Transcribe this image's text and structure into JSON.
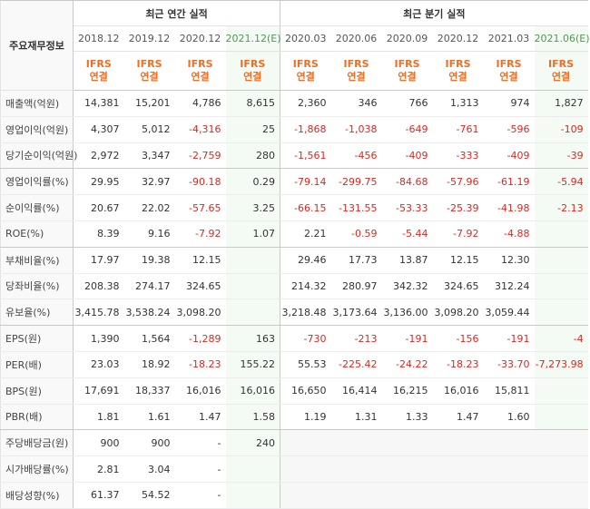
{
  "header": {
    "row_title": "주요재무정보",
    "annual_title": "최근 연간 실적",
    "quarterly_title": "최근 분기 실적",
    "periods": [
      "2018.12",
      "2019.12",
      "2020.12",
      "2021.12(E)",
      "2020.03",
      "2020.06",
      "2020.09",
      "2020.12",
      "2021.03",
      "2021.06(E)"
    ],
    "ifrs_line1": "IFRS",
    "ifrs_line2": "연결"
  },
  "rows": [
    {
      "label": "매출액(억원)",
      "values": [
        "14,381",
        "15,201",
        "4,786",
        "8,615",
        "2,360",
        "346",
        "766",
        "1,313",
        "974",
        "1,827"
      ]
    },
    {
      "label": "영업이익(억원)",
      "values": [
        "4,307",
        "5,012",
        "-4,316",
        "25",
        "-1,868",
        "-1,038",
        "-649",
        "-761",
        "-596",
        "-109"
      ]
    },
    {
      "label": "당기순이익(억원)",
      "values": [
        "2,972",
        "3,347",
        "-2,759",
        "280",
        "-1,561",
        "-456",
        "-409",
        "-333",
        "-409",
        "-39"
      ]
    },
    {
      "label": "영업이익률(%)",
      "values": [
        "29.95",
        "32.97",
        "-90.18",
        "0.29",
        "-79.14",
        "-299.75",
        "-84.68",
        "-57.96",
        "-61.19",
        "-5.94"
      ]
    },
    {
      "label": "순이익률(%)",
      "values": [
        "20.67",
        "22.02",
        "-57.65",
        "3.25",
        "-66.15",
        "-131.55",
        "-53.33",
        "-25.39",
        "-41.98",
        "-2.13"
      ]
    },
    {
      "label": "ROE(%)",
      "values": [
        "8.39",
        "9.16",
        "-7.92",
        "1.07",
        "2.21",
        "-0.59",
        "-5.44",
        "-7.92",
        "-4.88",
        ""
      ]
    },
    {
      "label": "부채비율(%)",
      "values": [
        "17.97",
        "19.38",
        "12.15",
        "",
        "29.46",
        "17.73",
        "13.87",
        "12.15",
        "12.30",
        ""
      ]
    },
    {
      "label": "당좌비율(%)",
      "values": [
        "208.38",
        "274.17",
        "324.65",
        "",
        "214.32",
        "280.97",
        "342.32",
        "324.65",
        "312.24",
        ""
      ]
    },
    {
      "label": "유보율(%)",
      "values": [
        "3,415.78",
        "3,538.24",
        "3,098.20",
        "",
        "3,218.48",
        "3,173.64",
        "3,136.00",
        "3,098.20",
        "3,059.44",
        ""
      ]
    },
    {
      "label": "EPS(원)",
      "values": [
        "1,390",
        "1,564",
        "-1,289",
        "163",
        "-730",
        "-213",
        "-191",
        "-156",
        "-191",
        "-4"
      ]
    },
    {
      "label": "PER(배)",
      "values": [
        "23.03",
        "18.92",
        "-18.23",
        "155.22",
        "55.53",
        "-225.42",
        "-24.22",
        "-18.23",
        "-33.70",
        "-7,273.98"
      ]
    },
    {
      "label": "BPS(원)",
      "values": [
        "17,691",
        "18,337",
        "16,016",
        "16,016",
        "16,650",
        "16,414",
        "16,215",
        "16,016",
        "15,811",
        ""
      ]
    },
    {
      "label": "PBR(배)",
      "values": [
        "1.81",
        "1.61",
        "1.47",
        "1.58",
        "1.19",
        "1.31",
        "1.33",
        "1.47",
        "1.60",
        ""
      ]
    },
    {
      "label": "주당배당금(원)",
      "values": [
        "900",
        "900",
        "-",
        "240",
        "",
        "",
        "",
        "",
        "",
        ""
      ]
    },
    {
      "label": "시가배당률(%)",
      "values": [
        "2.81",
        "3.04",
        "-",
        "",
        "",
        "",
        "",
        "",
        "",
        ""
      ]
    },
    {
      "label": "배당성향(%)",
      "values": [
        "61.37",
        "54.52",
        "-",
        "",
        "",
        "",
        "",
        "",
        "",
        ""
      ]
    }
  ]
}
